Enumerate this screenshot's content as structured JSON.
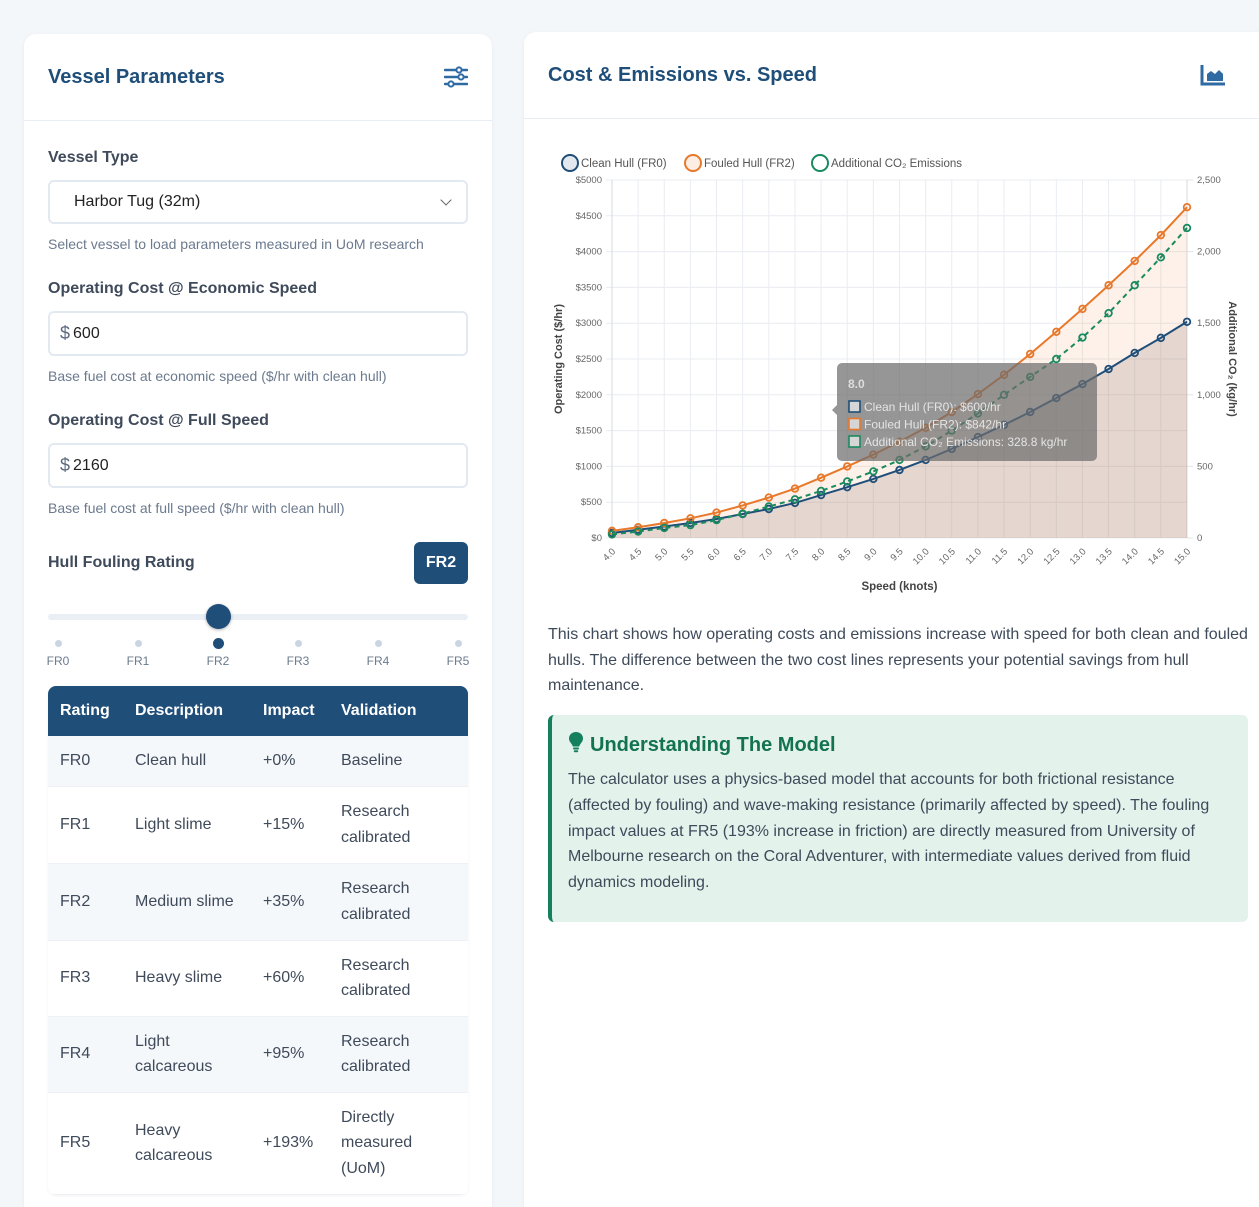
{
  "left_panel": {
    "title": "Vessel Parameters",
    "icon": "sliders-icon",
    "vessel_type": {
      "label": "Vessel Type",
      "selected": "Harbor Tug (32m)",
      "help": "Select vessel to load parameters measured in UoM research"
    },
    "economic_cost": {
      "label": "Operating Cost @ Economic Speed",
      "prefix": "$",
      "value": "600",
      "help": "Base fuel cost at economic speed ($/hr with clean hull)"
    },
    "full_cost": {
      "label": "Operating Cost @ Full Speed",
      "prefix": "$",
      "value": "2160",
      "help": "Base fuel cost at full speed ($/hr with clean hull)"
    },
    "fouling": {
      "label": "Hull Fouling Rating",
      "badge": "FR2",
      "selected_index": 2,
      "ticks": [
        "FR0",
        "FR1",
        "FR2",
        "FR3",
        "FR4",
        "FR5"
      ]
    },
    "table": {
      "headers": [
        "Rating",
        "Description",
        "Impact",
        "Validation"
      ],
      "rows": [
        {
          "rating": "FR0",
          "description": "Clean hull",
          "impact": "+0%",
          "validation": "Baseline"
        },
        {
          "rating": "FR1",
          "description": "Light slime",
          "impact": "+15%",
          "validation": "Research calibrated"
        },
        {
          "rating": "FR2",
          "description": "Medium slime",
          "impact": "+35%",
          "validation": "Research calibrated"
        },
        {
          "rating": "FR3",
          "description": "Heavy slime",
          "impact": "+60%",
          "validation": "Research calibrated"
        },
        {
          "rating": "FR4",
          "description": "Light calcareous",
          "impact": "+95%",
          "validation": "Research calibrated"
        },
        {
          "rating": "FR5",
          "description": "Heavy calcareous",
          "impact": "+193%",
          "validation": "Directly measured (UoM)"
        }
      ]
    }
  },
  "right_panel": {
    "title": "Cost & Emissions vs. Speed",
    "icon": "area-chart-icon",
    "description": "This chart shows how operating costs and emissions increase with speed for both clean and fouled hulls. The difference between the two cost lines represents your potential savings from hull maintenance.",
    "model": {
      "icon": "lightbulb-icon",
      "title": "Understanding The Model",
      "text": "The calculator uses a physics-based model that accounts for both frictional resistance (affected by fouling) and wave-making resistance (primarily affected by speed). The fouling impact values at FR5 (193% increase in friction) are directly measured from University of Melbourne research on the Coral Adventurer, with intermediate values derived from fluid dynamics modeling."
    }
  },
  "colors": {
    "primary": "#1f4e79",
    "clean": "#1f4e79",
    "fouled": "#e8782a",
    "co2": "#1a8a5f"
  },
  "chart_data": {
    "type": "line",
    "title": "Cost & Emissions vs. Speed",
    "xlabel": "Speed (knots)",
    "ylabel": "Operating Cost ($/hr)",
    "y2label": "Additional CO₂ (kg/hr)",
    "ylim": [
      0,
      5000
    ],
    "y2lim": [
      0,
      2500
    ],
    "yticks": [
      "$0",
      "$500",
      "$1000",
      "$1500",
      "$2000",
      "$2500",
      "$3000",
      "$3500",
      "$4000",
      "$4500",
      "$5000"
    ],
    "y2ticks": [
      "0",
      "500",
      "1,000",
      "1,500",
      "2,000",
      "2,500"
    ],
    "grid": true,
    "legend_position": "top-left",
    "x": [
      "4.0",
      "4.5",
      "5.0",
      "5.5",
      "6.0",
      "6.5",
      "7.0",
      "7.5",
      "8.0",
      "8.5",
      "9.0",
      "9.5",
      "10.0",
      "10.5",
      "11.0",
      "11.5",
      "12.0",
      "12.5",
      "13.0",
      "13.5",
      "14.0",
      "14.5",
      "15.0"
    ],
    "series": [
      {
        "name": "Clean Hull (FR0)",
        "axis": "left",
        "fill": true,
        "dashed": false,
        "values": [
          70,
          115,
          160,
          210,
          265,
          335,
          405,
          490,
          600,
          710,
          825,
          950,
          1090,
          1245,
          1410,
          1580,
          1760,
          1955,
          2150,
          2360,
          2585,
          2795,
          3020
        ]
      },
      {
        "name": "Fouled Hull (FR2)",
        "axis": "left",
        "fill": true,
        "dashed": false,
        "values": [
          100,
          150,
          210,
          275,
          355,
          455,
          565,
          690,
          842,
          1000,
          1165,
          1345,
          1540,
          1760,
          2010,
          2280,
          2570,
          2880,
          3200,
          3530,
          3870,
          4230,
          4620
        ]
      },
      {
        "name": "Additional CO₂ Emissions",
        "axis": "right",
        "fill": false,
        "dashed": true,
        "values": [
          25,
          45,
          70,
          90,
          125,
          170,
          220,
          270,
          328.8,
          395,
          465,
          545,
          640,
          750,
          870,
          1000,
          1125,
          1250,
          1400,
          1570,
          1765,
          1960,
          2165
        ]
      }
    ],
    "tooltip": {
      "x": "8.0",
      "lines": [
        "Clean Hull (FR0): $600/hr",
        "Fouled Hull (FR2): $842/hr",
        "Additional CO₂ Emissions: 328.8 kg/hr"
      ]
    }
  }
}
